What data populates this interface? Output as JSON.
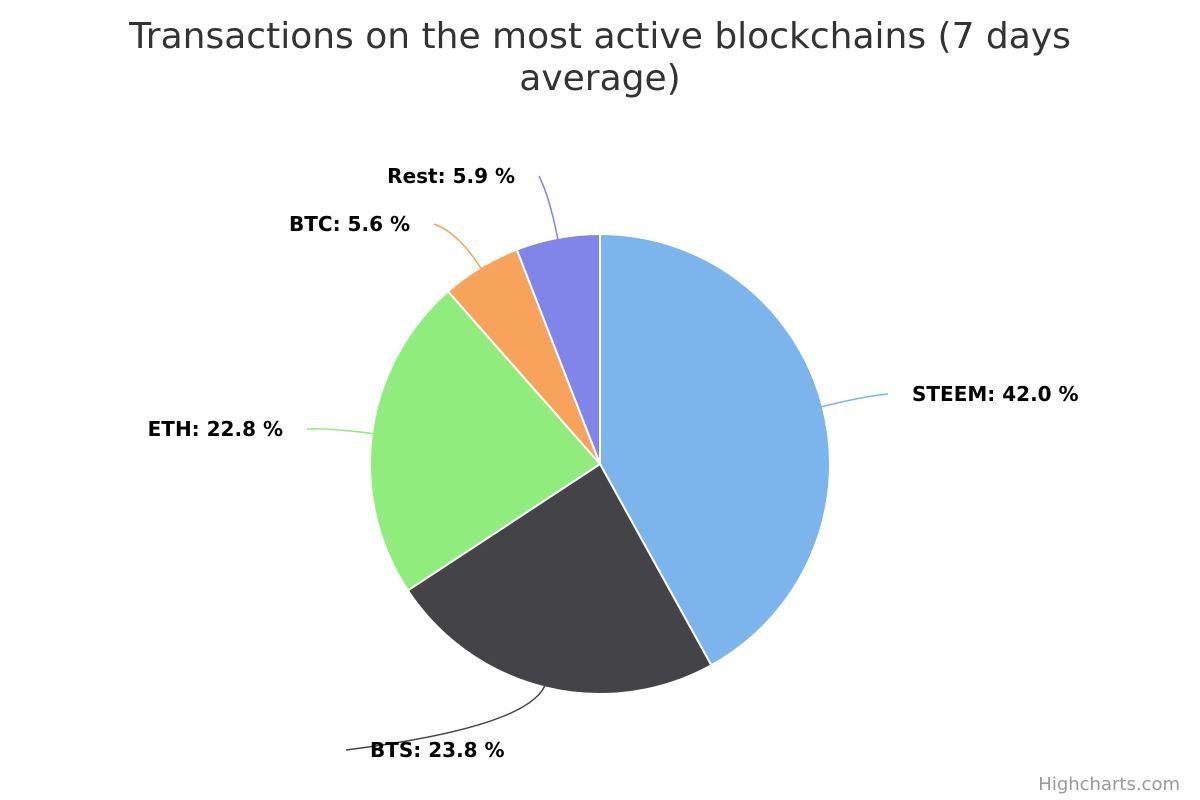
{
  "chart_data": {
    "type": "pie",
    "title_lines": [
      "Transactions on the most active blockchains (7 days",
      "average)"
    ],
    "label_format": "{name}: {value} %",
    "slices": [
      {
        "name": "STEEM",
        "value": 42.0,
        "color": "#7cb5ec"
      },
      {
        "name": "BTS",
        "value": 23.8,
        "color": "#434348"
      },
      {
        "name": "ETH",
        "value": 22.8,
        "color": "#90ed7d"
      },
      {
        "name": "BTC",
        "value": 5.6,
        "color": "#f7a35c"
      },
      {
        "name": "Rest",
        "value": 5.9,
        "color": "#8085e9"
      }
    ],
    "legend": "none"
  },
  "credits": "Highcharts.com"
}
